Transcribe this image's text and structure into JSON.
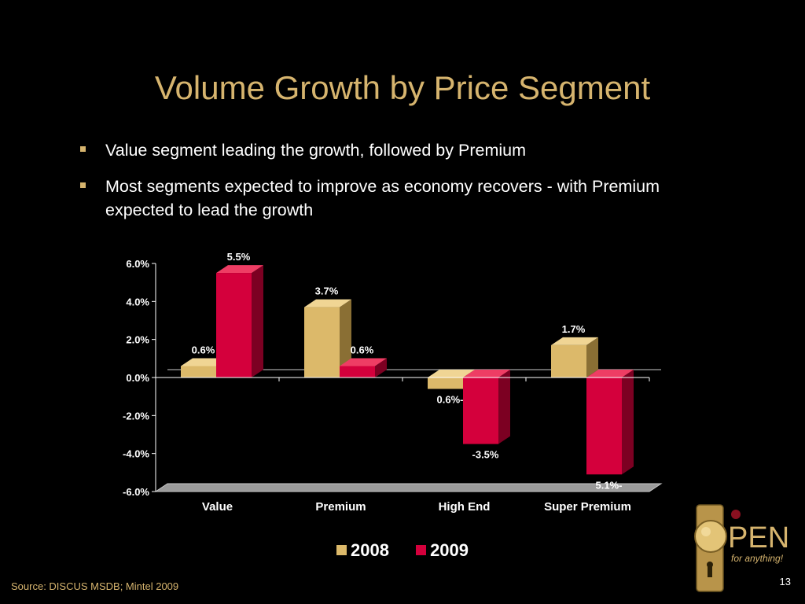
{
  "slide": {
    "title": "Volume Growth by Price Segment",
    "bullets": [
      "Value segment leading the growth, followed by Premium",
      "Most segments expected to improve as economy recovers - with Premium expected to lead the growth"
    ],
    "source": "Source:  DISCUS MSDB; Mintel 2009",
    "page_number": "13",
    "logo": {
      "word": "PEN",
      "tagline": "for anything!"
    }
  },
  "colors": {
    "title": "#d6b46e",
    "series_2008": "#dcb96a",
    "series_2009": "#d4003c",
    "background": "#000000"
  },
  "chart_data": {
    "type": "bar",
    "categories": [
      "Value",
      "Premium",
      "High End",
      "Super Premium"
    ],
    "series": [
      {
        "name": "2008",
        "values": [
          0.6,
          3.7,
          -0.6,
          1.7
        ],
        "labels": [
          "0.6%",
          "3.7%",
          "0.6%-",
          "1.7%"
        ]
      },
      {
        "name": "2009",
        "values": [
          5.5,
          0.6,
          -3.5,
          -5.1
        ],
        "labels": [
          "5.5%",
          "0.6%",
          "-3.5%",
          "5.1%-"
        ]
      }
    ],
    "ylim": [
      -6.0,
      6.0
    ],
    "yticks": [
      "6.0%",
      "4.0%",
      "2.0%",
      "0.0%",
      "-2.0%",
      "-4.0%",
      "-6.0%"
    ],
    "title": "",
    "xlabel": "",
    "ylabel": "",
    "legend": "bottom-center"
  }
}
